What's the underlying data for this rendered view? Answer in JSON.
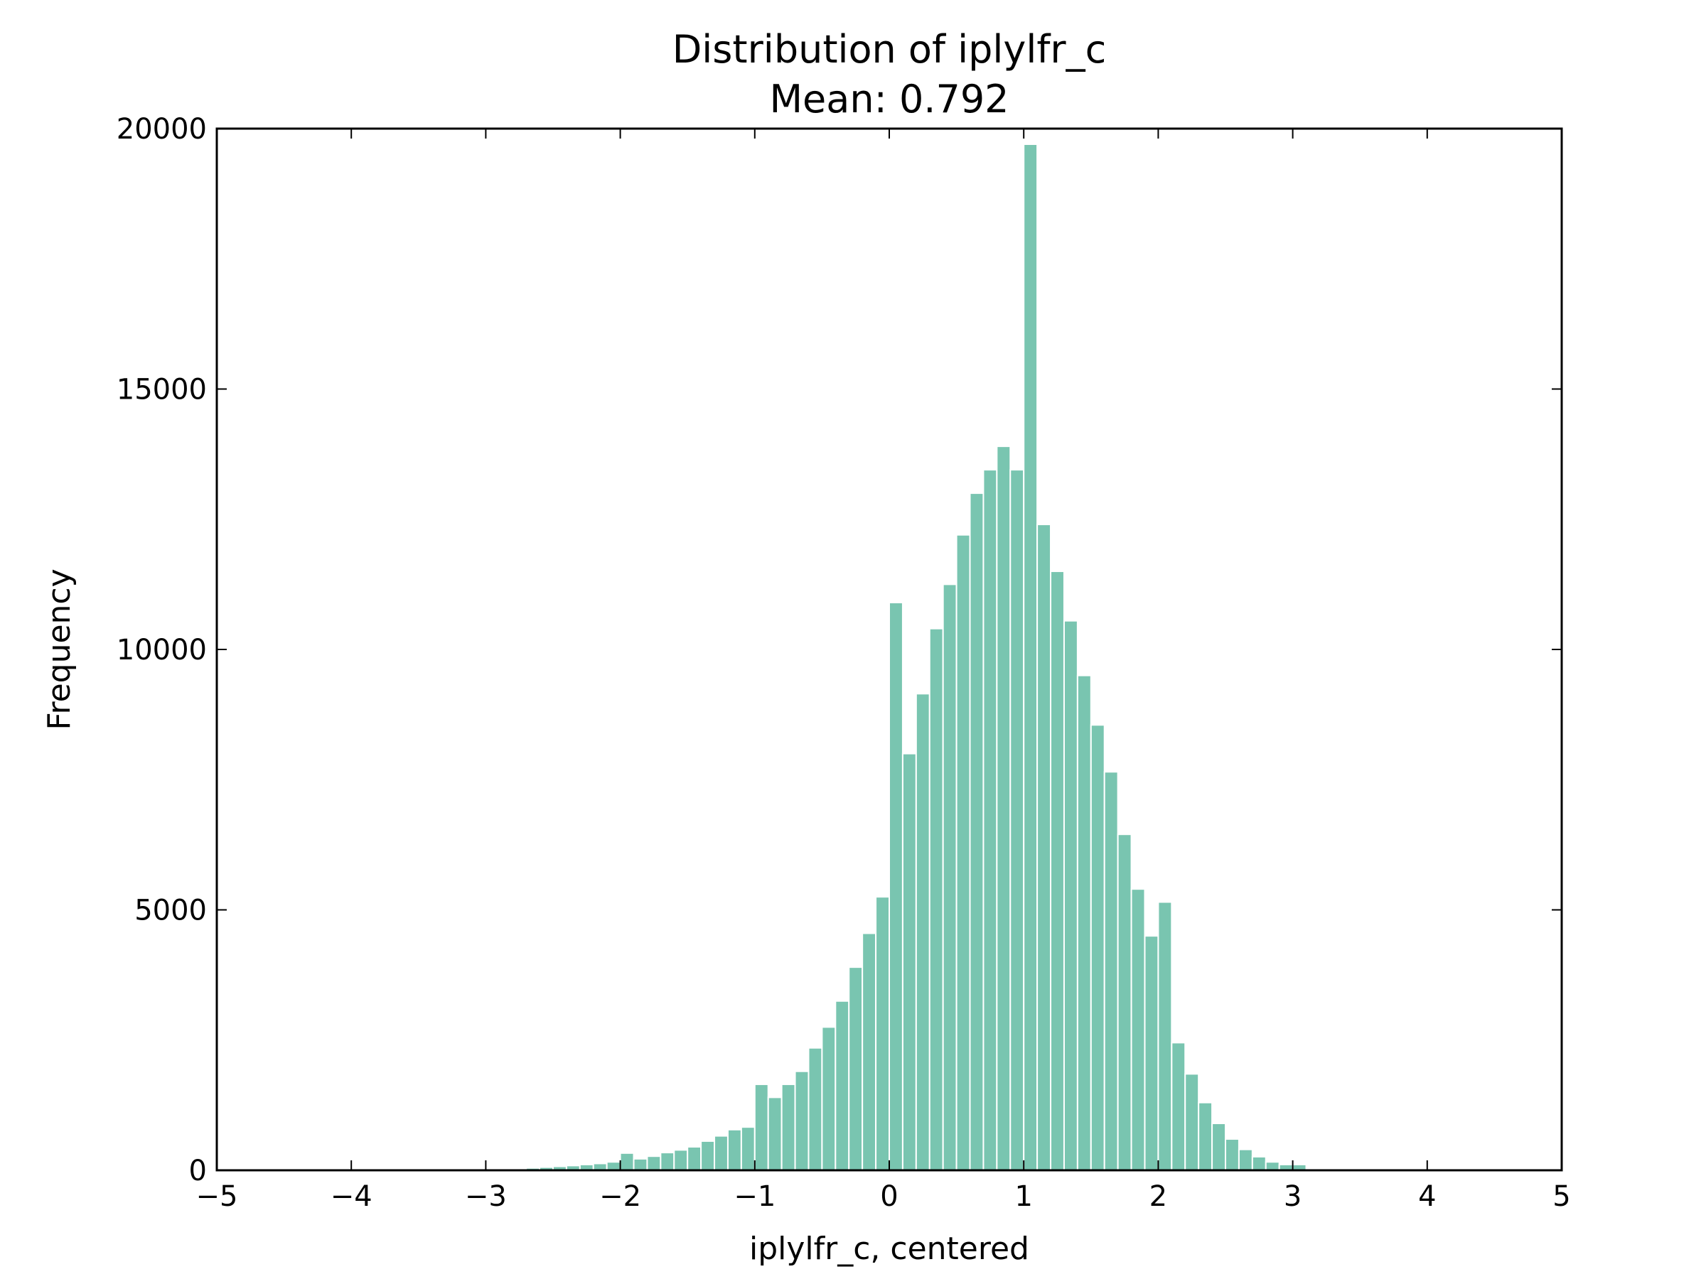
{
  "chart_data": {
    "type": "bar",
    "title": "Distribution of iplylfr_c",
    "subtitle": "Mean: 0.792",
    "xlabel": "iplylfr_c, centered",
    "ylabel": "Frequency",
    "xlim": [
      -5,
      5
    ],
    "ylim": [
      0,
      20000
    ],
    "x_ticks": [
      -5,
      -4,
      -3,
      -2,
      -1,
      0,
      1,
      2,
      3,
      4,
      5
    ],
    "x_tick_labels": [
      "−5",
      "−4",
      "−3",
      "−2",
      "−1",
      "0",
      "1",
      "2",
      "3",
      "4",
      "5"
    ],
    "y_ticks": [
      0,
      5000,
      10000,
      15000,
      20000
    ],
    "y_tick_labels": [
      "0",
      "5000",
      "10000",
      "15000",
      "20000"
    ],
    "grid": false,
    "bar_color": "#79c5b0",
    "bin_width": 0.1,
    "bins": [
      {
        "x": -2.8,
        "value": 30
      },
      {
        "x": -2.7,
        "value": 45
      },
      {
        "x": -2.6,
        "value": 60
      },
      {
        "x": -2.5,
        "value": 75
      },
      {
        "x": -2.4,
        "value": 90
      },
      {
        "x": -2.3,
        "value": 110
      },
      {
        "x": -2.2,
        "value": 130
      },
      {
        "x": -2.1,
        "value": 160
      },
      {
        "x": -2.0,
        "value": 330
      },
      {
        "x": -1.9,
        "value": 220
      },
      {
        "x": -1.8,
        "value": 270
      },
      {
        "x": -1.7,
        "value": 340
      },
      {
        "x": -1.6,
        "value": 390
      },
      {
        "x": -1.5,
        "value": 450
      },
      {
        "x": -1.4,
        "value": 560
      },
      {
        "x": -1.3,
        "value": 660
      },
      {
        "x": -1.2,
        "value": 780
      },
      {
        "x": -1.1,
        "value": 830
      },
      {
        "x": -1.0,
        "value": 1650
      },
      {
        "x": -0.9,
        "value": 1400
      },
      {
        "x": -0.8,
        "value": 1650
      },
      {
        "x": -0.7,
        "value": 1900
      },
      {
        "x": -0.6,
        "value": 2350
      },
      {
        "x": -0.5,
        "value": 2750
      },
      {
        "x": -0.4,
        "value": 3250
      },
      {
        "x": -0.3,
        "value": 3900
      },
      {
        "x": -0.2,
        "value": 4550
      },
      {
        "x": -0.1,
        "value": 5250
      },
      {
        "x": 0.0,
        "value": 10900
      },
      {
        "x": 0.1,
        "value": 8000
      },
      {
        "x": 0.2,
        "value": 9150
      },
      {
        "x": 0.3,
        "value": 10400
      },
      {
        "x": 0.4,
        "value": 11250
      },
      {
        "x": 0.5,
        "value": 12200
      },
      {
        "x": 0.6,
        "value": 13000
      },
      {
        "x": 0.7,
        "value": 13450
      },
      {
        "x": 0.8,
        "value": 13900
      },
      {
        "x": 0.9,
        "value": 13450
      },
      {
        "x": 1.0,
        "value": 19700
      },
      {
        "x": 1.1,
        "value": 12400
      },
      {
        "x": 1.2,
        "value": 11500
      },
      {
        "x": 1.3,
        "value": 10550
      },
      {
        "x": 1.4,
        "value": 9500
      },
      {
        "x": 1.5,
        "value": 8550
      },
      {
        "x": 1.6,
        "value": 7650
      },
      {
        "x": 1.7,
        "value": 6450
      },
      {
        "x": 1.8,
        "value": 5400
      },
      {
        "x": 1.9,
        "value": 4500
      },
      {
        "x": 2.0,
        "value": 5150
      },
      {
        "x": 2.1,
        "value": 2450
      },
      {
        "x": 2.2,
        "value": 1850
      },
      {
        "x": 2.3,
        "value": 1300
      },
      {
        "x": 2.4,
        "value": 900
      },
      {
        "x": 2.5,
        "value": 600
      },
      {
        "x": 2.6,
        "value": 400
      },
      {
        "x": 2.7,
        "value": 260
      },
      {
        "x": 2.8,
        "value": 160
      },
      {
        "x": 2.9,
        "value": 110
      },
      {
        "x": 3.0,
        "value": 110
      }
    ]
  }
}
